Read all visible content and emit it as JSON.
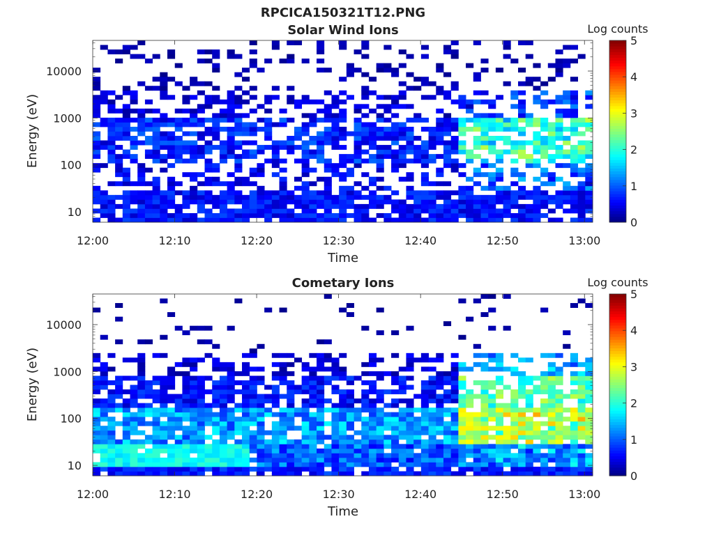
{
  "figure": {
    "title": "RPCICA150321T12.PNG"
  },
  "colors": {
    "colormap": [
      "#000080",
      "#0000ff",
      "#00ffff",
      "#ffff00",
      "#ff0000",
      "#800000"
    ],
    "background": "#ffffff"
  },
  "chart_data": [
    {
      "type": "heatmap",
      "title": "Solar Wind Ions",
      "xlabel": "Time",
      "ylabel": "Energy (eV)",
      "x_ticks": [
        "12:00",
        "12:10",
        "12:20",
        "12:30",
        "12:40",
        "12:50",
        "13:00"
      ],
      "y_ticks": [
        "10",
        "100",
        "1000",
        "10000"
      ],
      "y_scale": "log",
      "y_range": [
        6,
        45000
      ],
      "colorbar": {
        "label": "Log counts",
        "ticks": [
          "0",
          "1",
          "2",
          "3",
          "4",
          "5"
        ],
        "range": [
          0,
          5
        ]
      },
      "grid": false,
      "profile": "solar"
    },
    {
      "type": "heatmap",
      "title": "Cometary Ions",
      "xlabel": "Time",
      "ylabel": "Energy (eV)",
      "x_ticks": [
        "12:00",
        "12:10",
        "12:20",
        "12:30",
        "12:40",
        "12:50",
        "13:00"
      ],
      "y_ticks": [
        "10",
        "100",
        "1000",
        "10000"
      ],
      "y_scale": "log",
      "y_range": [
        6,
        45000
      ],
      "colorbar": {
        "label": "Log counts",
        "ticks": [
          "0",
          "1",
          "2",
          "3",
          "4",
          "5"
        ],
        "range": [
          0,
          5
        ]
      },
      "grid": false,
      "profile": "cometary"
    }
  ]
}
